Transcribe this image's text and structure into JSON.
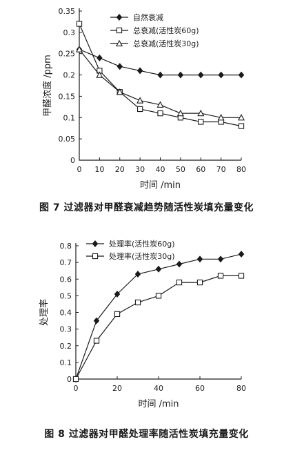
{
  "figures": [
    {
      "caption": "图 7   过滤器对甲醛衰减趋势随活性炭填充量变化",
      "chart_data": {
        "type": "line",
        "ylabel": "甲醛浓度 /ppm",
        "xlabel": "时间 /min",
        "xlim": [
          0,
          80
        ],
        "ylim": [
          0,
          0.35
        ],
        "x_ticks": [
          "0",
          "10",
          "20",
          "30",
          "40",
          "50",
          "60",
          "70",
          "80"
        ],
        "y_ticks": [
          "0",
          "0.05",
          "0.1",
          "0.15",
          "0.2",
          "0.25",
          "0.3",
          "0.35"
        ],
        "x": [
          0,
          10,
          20,
          30,
          40,
          50,
          60,
          70,
          80
        ],
        "legend_position": "top-right",
        "series": [
          {
            "name": "自然衰减",
            "marker": "diamond-filled",
            "values": [
              0.26,
              0.24,
              0.22,
              0.21,
              0.2,
              0.2,
              0.2,
              0.2,
              0.2
            ]
          },
          {
            "name": "总衰减(活性炭60g)",
            "marker": "square-open",
            "values": [
              0.32,
              0.21,
              0.16,
              0.12,
              0.11,
              0.1,
              0.09,
              0.09,
              0.08
            ]
          },
          {
            "name": "总衰减(活性炭30g)",
            "marker": "triangle-open",
            "values": [
              0.26,
              0.2,
              0.16,
              0.14,
              0.13,
              0.11,
              0.11,
              0.1,
              0.1
            ]
          }
        ]
      }
    },
    {
      "caption": "图 8   过滤器对甲醛处理率随活性炭填充量变化",
      "chart_data": {
        "type": "line",
        "ylabel": "处理率",
        "xlabel": "时间 /min",
        "xlim": [
          0,
          80
        ],
        "ylim": [
          0,
          0.8
        ],
        "x_ticks": [
          "0",
          "20",
          "40",
          "60",
          "80"
        ],
        "y_ticks": [
          "0",
          "0.1",
          "0.2",
          "0.3",
          "0.4",
          "0.5",
          "0.6",
          "0.7",
          "0.8"
        ],
        "x": [
          0,
          10,
          20,
          30,
          40,
          50,
          60,
          70,
          80
        ],
        "legend_position": "top-left",
        "series": [
          {
            "name": "处理率(活性炭60g)",
            "marker": "diamond-filled",
            "values": [
              0,
              0.35,
              0.51,
              0.63,
              0.66,
              0.69,
              0.72,
              0.72,
              0.75
            ]
          },
          {
            "name": "处理率(活性炭30g)",
            "marker": "square-open",
            "values": [
              0,
              0.23,
              0.39,
              0.46,
              0.5,
              0.58,
              0.58,
              0.62,
              0.62
            ]
          }
        ]
      }
    }
  ]
}
